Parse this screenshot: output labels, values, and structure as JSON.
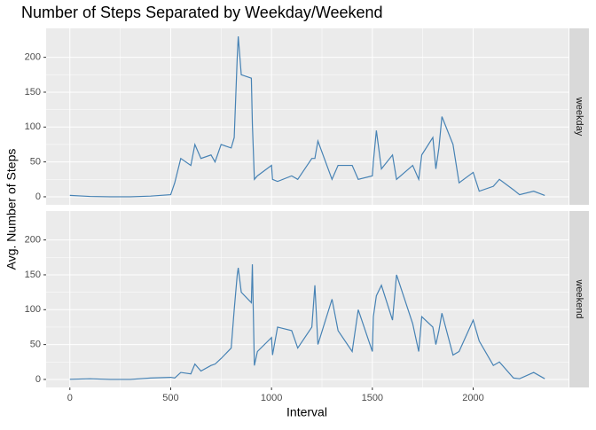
{
  "chart_data": {
    "type": "line",
    "title": "Number of Steps Separated by Weekday/Weekend",
    "x_label": "Interval",
    "y_label": "Avg. Number of Steps",
    "x": [
      0,
      100,
      200,
      300,
      400,
      500,
      520,
      550,
      600,
      620,
      650,
      700,
      720,
      750,
      800,
      815,
      830,
      835,
      850,
      900,
      905,
      915,
      930,
      1000,
      1005,
      1030,
      1100,
      1130,
      1200,
      1215,
      1230,
      1300,
      1330,
      1400,
      1430,
      1500,
      1505,
      1520,
      1545,
      1600,
      1620,
      1700,
      1730,
      1745,
      1800,
      1815,
      1830,
      1845,
      1900,
      1930,
      2000,
      2030,
      2100,
      2130,
      2200,
      2230,
      2300,
      2355
    ],
    "series": [
      {
        "name": "weekday",
        "color": "#4682b4",
        "values": [
          2,
          0.5,
          0,
          0,
          1,
          3,
          20,
          55,
          45,
          75,
          55,
          60,
          50,
          75,
          70,
          85,
          200,
          230,
          175,
          170,
          105,
          25,
          30,
          45,
          25,
          22,
          30,
          25,
          55,
          55,
          80,
          25,
          45,
          45,
          25,
          30,
          50,
          95,
          40,
          60,
          25,
          45,
          25,
          60,
          85,
          40,
          70,
          115,
          75,
          20,
          35,
          8,
          15,
          25,
          10,
          3,
          8,
          2
        ]
      },
      {
        "name": "weekend",
        "color": "#4682b4",
        "values": [
          0.2,
          1,
          0,
          0,
          2,
          3,
          2,
          10,
          8,
          22,
          12,
          20,
          22,
          30,
          45,
          100,
          150,
          160,
          125,
          110,
          165,
          20,
          40,
          60,
          35,
          75,
          70,
          45,
          75,
          135,
          50,
          115,
          70,
          40,
          100,
          40,
          90,
          120,
          135,
          85,
          150,
          80,
          40,
          90,
          75,
          50,
          70,
          95,
          35,
          40,
          85,
          55,
          20,
          25,
          2,
          1,
          10,
          1
        ]
      }
    ],
    "xlim": [
      -117.75,
      2472.75
    ],
    "xticks": [
      0,
      500,
      1000,
      1500,
      2000
    ],
    "ylim": [
      -11.5,
      241.5
    ],
    "yticks": [
      0,
      50,
      100,
      150,
      200
    ],
    "grid": true,
    "facets": true
  }
}
